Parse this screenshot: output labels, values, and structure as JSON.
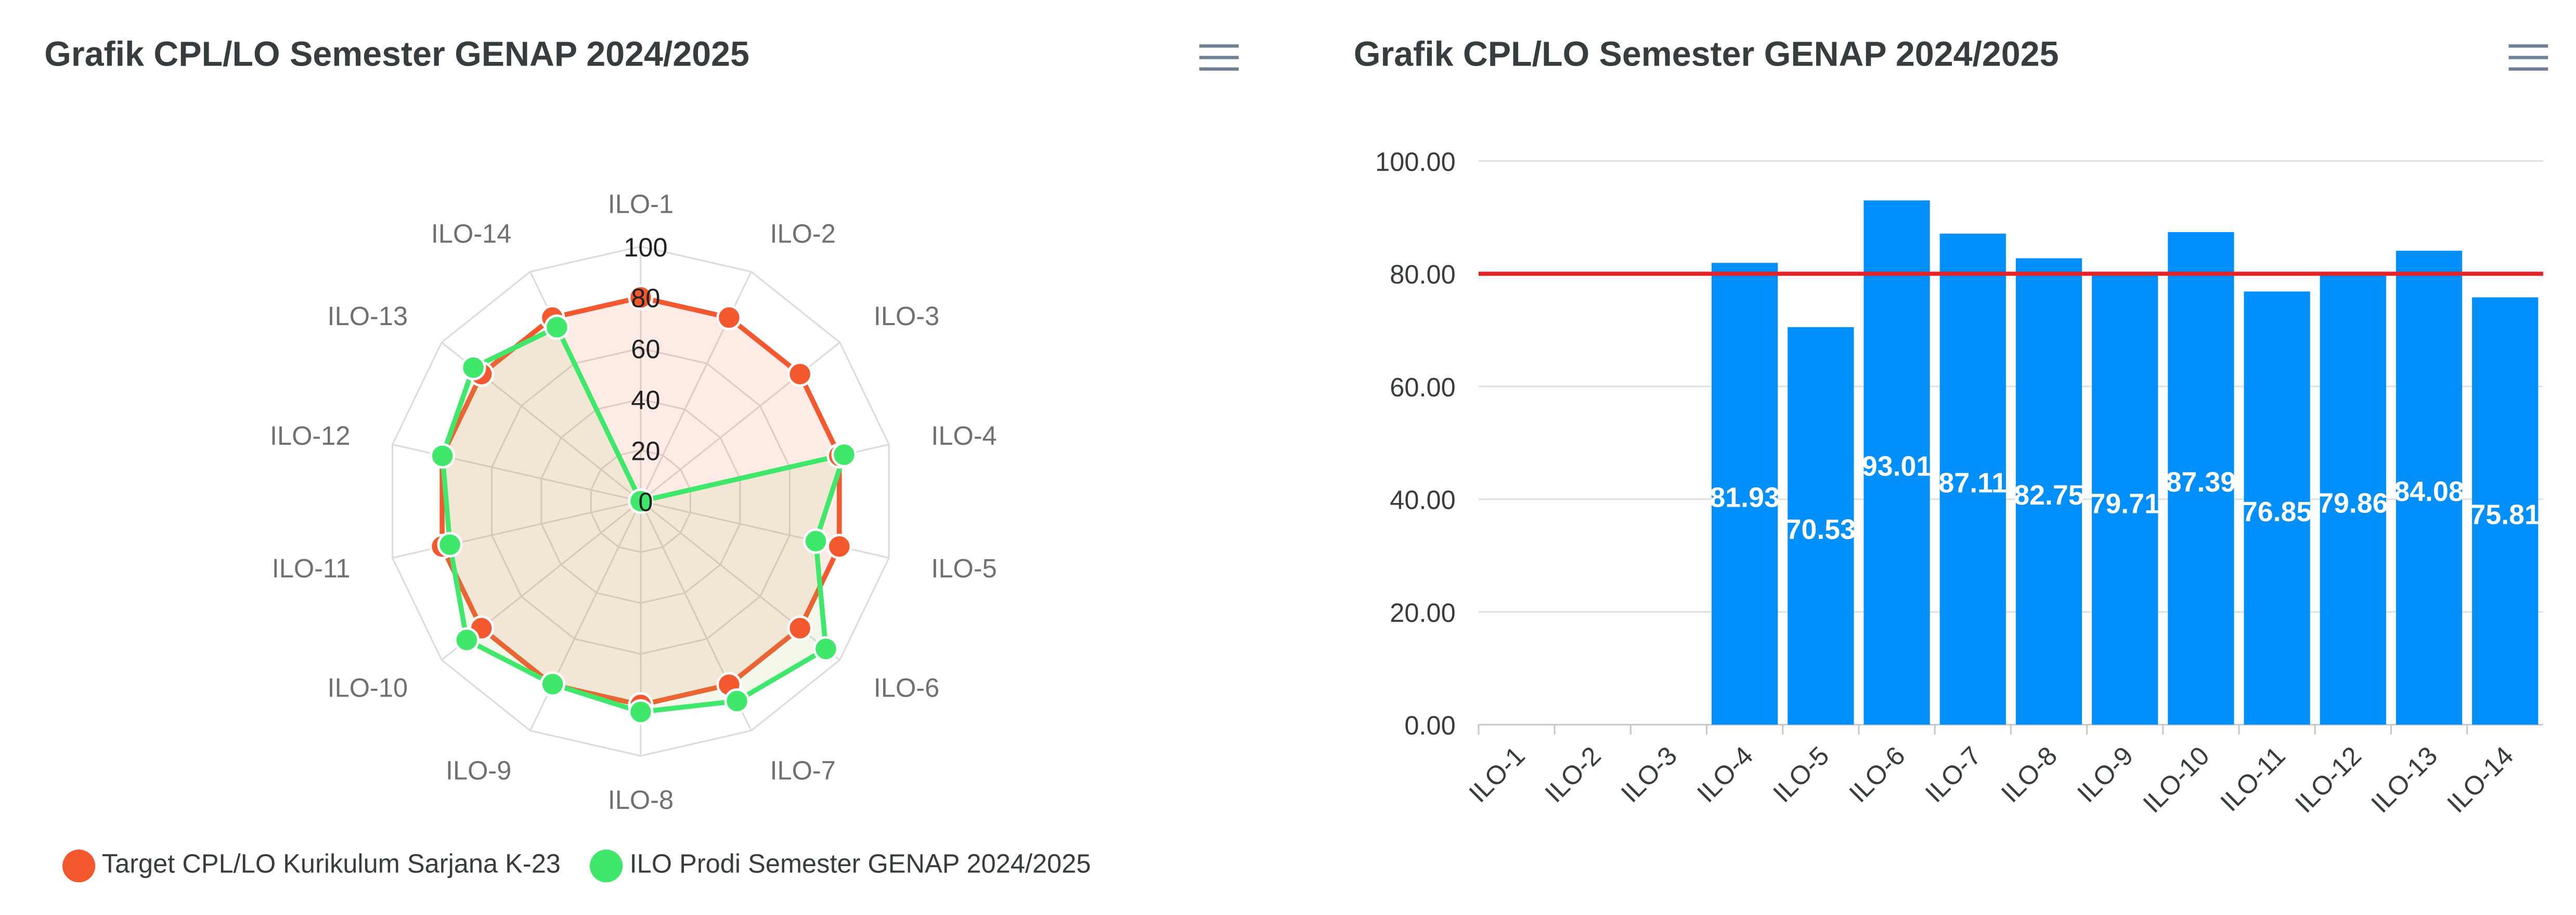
{
  "left_panel": {
    "title": "Grafik CPL/LO Semester GENAP 2024/2025",
    "menu_icon": "hamburger-icon"
  },
  "right_panel": {
    "title": "Grafik CPL/LO Semester GENAP 2024/2025",
    "menu_icon": "hamburger-icon"
  },
  "colors": {
    "target": "#f4582f",
    "prodi": "#3fe86b",
    "bar": "#008ffb",
    "target_line": "#e3242b"
  },
  "chart_data": [
    {
      "type": "radar",
      "title": "Grafik CPL/LO Semester GENAP 2024/2025",
      "categories": [
        "ILO-1",
        "ILO-2",
        "ILO-3",
        "ILO-4",
        "ILO-5",
        "ILO-6",
        "ILO-7",
        "ILO-8",
        "ILO-9",
        "ILO-10",
        "ILO-11",
        "ILO-12",
        "ILO-13",
        "ILO-14"
      ],
      "ticks": [
        "0",
        "20",
        "40",
        "60",
        "80",
        "100"
      ],
      "range": [
        0,
        100
      ],
      "legend_position": "bottom-left",
      "series": [
        {
          "name": "Target CPL/LO Kurikulum Sarjana K-23",
          "values": [
            80,
            80,
            80,
            80,
            80,
            80,
            80,
            80,
            80,
            80,
            80,
            80,
            80,
            80
          ]
        },
        {
          "name": "ILO Prodi Semester GENAP 2024/2025",
          "values": [
            0,
            0,
            0,
            81.93,
            70.53,
            93.01,
            87.11,
            82.75,
            79.71,
            87.39,
            76.85,
            79.86,
            84.08,
            75.81
          ]
        }
      ]
    },
    {
      "type": "bar",
      "title": "Grafik CPL/LO Semester GENAP 2024/2025",
      "categories": [
        "ILO-1",
        "ILO-2",
        "ILO-3",
        "ILO-4",
        "ILO-5",
        "ILO-6",
        "ILO-7",
        "ILO-8",
        "ILO-9",
        "ILO-10",
        "ILO-11",
        "ILO-12",
        "ILO-13",
        "ILO-14"
      ],
      "values": [
        null,
        null,
        null,
        81.93,
        70.53,
        93.01,
        87.11,
        82.75,
        79.71,
        87.39,
        76.85,
        79.86,
        84.08,
        75.81
      ],
      "data_labels": [
        "",
        "",
        "",
        "81.93",
        "70.53",
        "93.01",
        "87.11",
        "82.75",
        "79.71",
        "87.39",
        "76.85",
        "79.86",
        "84.08",
        "75.81"
      ],
      "yticks": [
        "0.00",
        "20.00",
        "40.00",
        "60.00",
        "80.00",
        "100.00"
      ],
      "ylim": [
        0,
        100
      ],
      "target_line": 80,
      "grid": true
    }
  ]
}
